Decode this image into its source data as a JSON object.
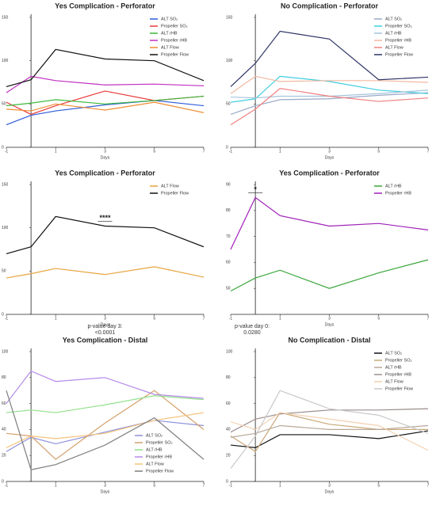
{
  "chart_data": [
    {
      "type": "line",
      "title": "Yes Complication - Perforator",
      "xlabel": "Days",
      "x": [
        -1,
        0,
        1,
        3,
        5,
        7
      ],
      "xlim": [
        -1,
        7
      ],
      "xticks": [
        -1,
        1,
        3,
        5,
        7
      ],
      "ylim": [
        0,
        150
      ],
      "yticks": [
        0,
        50,
        100,
        150
      ],
      "legend": "top-right",
      "series": [
        {
          "name": "ALT SO₂",
          "color": "#2f5bd8",
          "values": [
            26,
            37,
            42,
            49,
            54,
            48
          ]
        },
        {
          "name": "Propeller SO₂",
          "color": "#e83a3a",
          "values": [
            52,
            38,
            48,
            65,
            54,
            59
          ]
        },
        {
          "name": "ALT rHB",
          "color": "#3cb83c",
          "values": [
            48,
            51,
            55,
            50,
            54,
            59
          ]
        },
        {
          "name": "Propeller rHB",
          "color": "#c030c0",
          "values": [
            63,
            82,
            77,
            72,
            73,
            71
          ]
        },
        {
          "name": "ALT Flow",
          "color": "#f08c30",
          "values": [
            44,
            42,
            50,
            43,
            52,
            40
          ]
        },
        {
          "name": "Propeller Flow",
          "color": "#111111",
          "values": [
            70,
            78,
            113,
            102,
            100,
            77
          ]
        }
      ]
    },
    {
      "type": "line",
      "title": "No Complication - Perforator",
      "xlabel": "Days",
      "x": [
        -1,
        0,
        1,
        3,
        5,
        7
      ],
      "xlim": [
        -1,
        7
      ],
      "xticks": [
        -1,
        1,
        3,
        5,
        7
      ],
      "ylim": [
        0,
        150
      ],
      "yticks": [
        0,
        50,
        100,
        150
      ],
      "legend": "top-right",
      "series": [
        {
          "name": "ALT SO₂",
          "color": "#9aa9c7",
          "values": [
            38,
            48,
            55,
            56,
            60,
            63
          ]
        },
        {
          "name": "Propeller SO₂",
          "color": "#3fcde0",
          "values": [
            52,
            56,
            82,
            76,
            66,
            62
          ]
        },
        {
          "name": "ALT rHB",
          "color": "#a3c4dc",
          "values": [
            58,
            57,
            59,
            59,
            62,
            66
          ]
        },
        {
          "name": "Propeller rHB",
          "color": "#f2b8a0",
          "values": [
            62,
            82,
            76,
            77,
            77,
            75
          ]
        },
        {
          "name": "ALT Flow",
          "color": "#f08080",
          "values": [
            26,
            44,
            68,
            59,
            53,
            57
          ]
        },
        {
          "name": "Propeller Flow",
          "color": "#2e3566",
          "values": [
            70,
            97,
            134,
            125,
            78,
            81
          ]
        }
      ]
    },
    {
      "type": "line",
      "title": "Yes Complication - Perforator",
      "xlabel": "Days",
      "x": [
        -1,
        0,
        1,
        3,
        5,
        7
      ],
      "xlim": [
        -1,
        7
      ],
      "xticks": [
        -1,
        1,
        3,
        5,
        7
      ],
      "ylim": [
        0,
        150
      ],
      "yticks": [
        0,
        50,
        100,
        150
      ],
      "legend": "top-right",
      "annotation": {
        "text": "****",
        "x": 3
      },
      "series": [
        {
          "name": "ALT Flow",
          "color": "#e8a33d",
          "values": [
            42,
            47,
            53,
            46,
            55,
            43
          ]
        },
        {
          "name": "Propeller Flow",
          "color": "#111111",
          "values": [
            70,
            78,
            113,
            102,
            100,
            78
          ]
        }
      ]
    },
    {
      "type": "line",
      "title": "Yes Complication - Perforator",
      "xlabel": "Days",
      "x": [
        -1,
        0,
        1,
        3,
        5,
        7
      ],
      "xlim": [
        -1,
        7
      ],
      "xticks": [
        -1,
        1,
        3,
        5,
        7
      ],
      "ylim": [
        40,
        90
      ],
      "yticks": [
        50,
        60,
        70,
        80,
        90
      ],
      "legend": "top-right",
      "annotation": {
        "text": "*",
        "x": 0
      },
      "series": [
        {
          "name": "ALT rHB",
          "color": "#3aa63a",
          "values": [
            49,
            54,
            57,
            50,
            56,
            61
          ]
        },
        {
          "name": "Propeller rHB",
          "color": "#a020b8",
          "values": [
            65,
            85,
            78,
            74,
            75,
            72.5
          ]
        }
      ]
    },
    {
      "type": "line",
      "title": "Yes Complication - Distal",
      "subtitle": [
        "p-value day 3:",
        "<0.0001"
      ],
      "xlabel": "Days",
      "x": [
        -1,
        0,
        1,
        3,
        5,
        7
      ],
      "xlim": [
        -1,
        7
      ],
      "xticks": [
        -1,
        1,
        3,
        5,
        7
      ],
      "ylim": [
        0,
        100
      ],
      "yticks": [
        0,
        20,
        40,
        60,
        80,
        100
      ],
      "legend": "bottom-center",
      "series": [
        {
          "name": "ALT SO₂",
          "color": "#8c8fd9",
          "values": [
            23,
            34,
            29,
            38,
            47,
            43
          ]
        },
        {
          "name": "Propeller SO₂",
          "color": "#d4a06a",
          "values": [
            37,
            35,
            17,
            45,
            70,
            40
          ]
        },
        {
          "name": "ALT rHB",
          "color": "#90e08a",
          "values": [
            53,
            55,
            53,
            59,
            66,
            63
          ]
        },
        {
          "name": "Propeller rHB",
          "color": "#b58ce8",
          "values": [
            60,
            85,
            77,
            80,
            67,
            64
          ]
        },
        {
          "name": "ALT Flow",
          "color": "#f5c27a",
          "values": [
            26,
            35,
            33,
            37,
            47,
            53
          ]
        },
        {
          "name": "Propeller Flow",
          "color": "#7f7f7f",
          "values": [
            70,
            9,
            13,
            28,
            49,
            17
          ]
        }
      ]
    },
    {
      "type": "line",
      "title": "No Complication - Distal",
      "subtitle": [
        "p-value day 0:",
        "0.0280"
      ],
      "xlabel": "Days",
      "x": [
        -1,
        0,
        1,
        3,
        5,
        7
      ],
      "xlim": [
        -1,
        7
      ],
      "xticks": [
        -1,
        1,
        3,
        5,
        7
      ],
      "ylim": [
        0,
        100
      ],
      "yticks": [
        0,
        20,
        40,
        60,
        80,
        100
      ],
      "legend": "top-right",
      "series": [
        {
          "name": "ALT SO₂",
          "color": "#111111",
          "values": [
            28,
            26,
            36,
            36,
            33,
            39
          ]
        },
        {
          "name": "Propeller SO₂",
          "color": "#c9a878",
          "values": [
            35,
            23,
            53,
            44,
            40,
            40
          ]
        },
        {
          "name": "ALT rHB",
          "color": "#b8a898",
          "values": [
            34,
            37,
            43,
            40,
            40,
            43
          ]
        },
        {
          "name": "Propeller rHB",
          "color": "#9c8c8c",
          "values": [
            38,
            48,
            52,
            55,
            55,
            56
          ]
        },
        {
          "name": "ALT Flow",
          "color": "#f5d0b0",
          "values": [
            46,
            40,
            53,
            48,
            43,
            24
          ]
        },
        {
          "name": "Propeller Flow",
          "color": "#c8c8c8",
          "values": [
            10,
            35,
            70,
            56,
            51,
            37
          ]
        }
      ]
    }
  ]
}
